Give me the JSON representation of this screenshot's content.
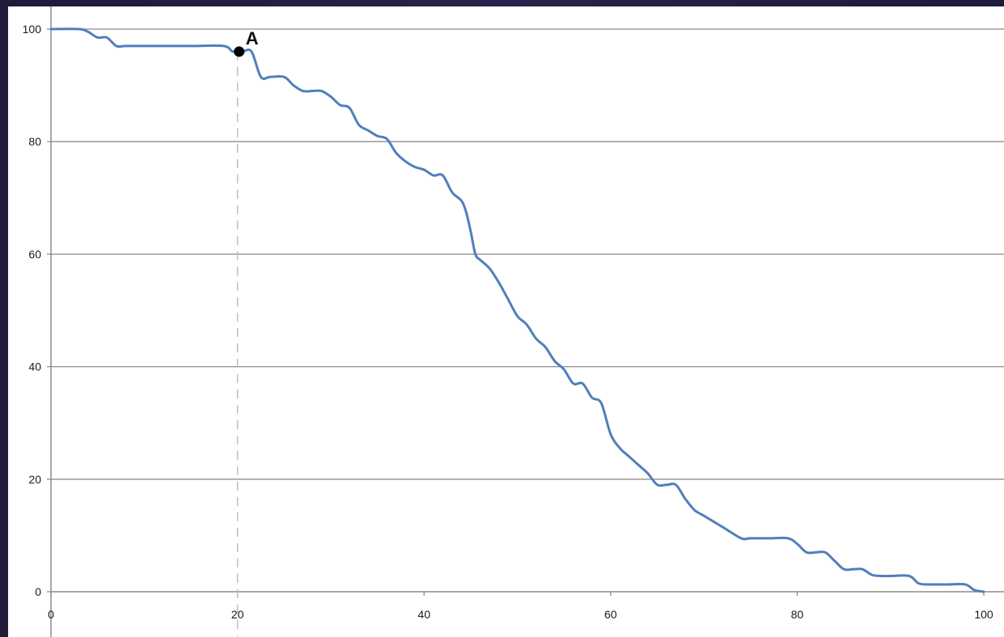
{
  "chart_data": {
    "type": "line",
    "title": "",
    "xlabel": "",
    "ylabel": "",
    "xlim": [
      0,
      100
    ],
    "ylim": [
      0,
      100
    ],
    "x_ticks": [
      0,
      20,
      40,
      60,
      80,
      100
    ],
    "y_ticks": [
      0,
      20,
      40,
      60,
      80,
      100
    ],
    "x_tick_labels": [
      "0",
      "20",
      "40",
      "60",
      "80",
      "100"
    ],
    "y_tick_labels": [
      "0",
      "20",
      "40",
      "60",
      "80",
      "100"
    ],
    "grid": "horizontal",
    "legend": "none",
    "series": [
      {
        "color": "#4f7fbd",
        "x": [
          0,
          3,
          4,
          5,
          6,
          7,
          8,
          10,
          15,
          18.5,
          19.5,
          20.5,
          21.5,
          22.5,
          23.5,
          25,
          26,
          27,
          28,
          29,
          30,
          31,
          32,
          33,
          34,
          35,
          36,
          37,
          38,
          39,
          40,
          41,
          42,
          43,
          44,
          44.5,
          45,
          45.5,
          46,
          47,
          48,
          49,
          50,
          51,
          52,
          53,
          54,
          55,
          56,
          57,
          58,
          59,
          60,
          61,
          62,
          63,
          64,
          65,
          66,
          67,
          68,
          69,
          70,
          72,
          74,
          75,
          77,
          79,
          80,
          81,
          82,
          83,
          84,
          85,
          86,
          87,
          88,
          89,
          90,
          92,
          93,
          94,
          96,
          98,
          99,
          100
        ],
        "y": [
          100,
          100,
          99.5,
          98.5,
          98.5,
          97,
          97,
          97,
          97,
          97,
          96,
          96,
          96,
          91.5,
          91.5,
          91.5,
          90,
          89,
          89,
          89,
          88,
          86.5,
          86,
          83,
          82,
          81,
          80.5,
          78,
          76.5,
          75.5,
          75,
          74,
          74,
          71,
          69.5,
          67.5,
          64,
          60,
          59,
          57.5,
          55,
          52,
          49,
          47.5,
          45,
          43.5,
          41,
          39.5,
          37,
          37,
          34.5,
          33.5,
          28,
          25.5,
          24,
          22.5,
          21,
          19,
          19,
          19,
          16.5,
          14.5,
          13.5,
          11.5,
          9.5,
          9.5,
          9.5,
          9.5,
          8.5,
          7,
          7,
          7,
          5.5,
          4,
          4,
          4,
          3,
          2.8,
          2.8,
          2.8,
          1.5,
          1.3,
          1.3,
          1.3,
          0.3,
          0
        ]
      }
    ],
    "annotations": [
      {
        "label": "A",
        "x": 20,
        "y": 96,
        "guide": "vertical dashed line from point to x-axis"
      }
    ]
  }
}
